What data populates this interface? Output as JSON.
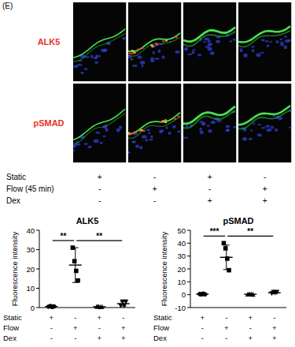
{
  "panel_label": "(E)",
  "images": {
    "rows": [
      "ALK5",
      "pSMAD"
    ],
    "row_color": "#e8332a",
    "conditions": [
      {
        "label": "Static",
        "values": [
          "+",
          "-",
          "+",
          "-"
        ]
      },
      {
        "label": "Flow (45 min)",
        "values": [
          "-",
          "+",
          "-",
          "+"
        ]
      },
      {
        "label": "Dex",
        "values": [
          "-",
          "-",
          "+",
          "+"
        ]
      }
    ]
  },
  "chart_data": [
    {
      "type": "dot",
      "title": "ALK5",
      "y_label": "Fluorescence intensity",
      "categories": [
        null,
        null,
        null,
        null
      ],
      "values": [
        0.55,
        22,
        0.45,
        2
      ],
      "errors": [
        0.2,
        9,
        0.15,
        1.2
      ],
      "points": [
        [
          0.5,
          0.8,
          0.3,
          0.6
        ],
        [
          31,
          24,
          19,
          14
        ],
        [
          0.5,
          0.6,
          0.3,
          0.4
        ],
        [
          1,
          3,
          1,
          3
        ]
      ],
      "color": "#000000",
      "ylim": [
        0,
        40
      ],
      "yticks": [
        0,
        10,
        20,
        30,
        40
      ],
      "annotations": [
        {
          "text": "**",
          "from": 0,
          "to": 1
        },
        {
          "text": "**",
          "from": 1,
          "to": 3
        }
      ],
      "conditions": [
        {
          "label": "Static",
          "values": [
            "+",
            "-",
            "+",
            "-"
          ]
        },
        {
          "label": "Flow",
          "values": [
            "-",
            "+",
            "-",
            "+"
          ]
        },
        {
          "label": "Dex",
          "values": [
            "-",
            "-",
            "+",
            "+"
          ]
        }
      ]
    },
    {
      "type": "dot",
      "title": "pSMAD",
      "y_label": "Fluorescence intensity",
      "categories": [
        null,
        null,
        null,
        null
      ],
      "values": [
        0.45,
        29,
        0.35,
        1.5
      ],
      "errors": [
        0.25,
        9.5,
        0.15,
        0.5
      ],
      "points": [
        [
          0.5,
          0.3,
          0.8,
          0.2
        ],
        [
          40,
          36,
          28,
          19
        ],
        [
          0.3,
          0.5,
          0.4,
          0.2
        ],
        [
          1,
          2,
          1.5,
          2
        ]
      ],
      "color": "#000000",
      "ylim": [
        -10,
        50
      ],
      "yticks": [
        -10,
        0,
        10,
        20,
        30,
        40,
        50
      ],
      "annotations": [
        {
          "text": "***",
          "from": 0,
          "to": 1
        },
        {
          "text": "**",
          "from": 1,
          "to": 3
        }
      ],
      "conditions": [
        {
          "label": "Static",
          "values": [
            "+",
            "-",
            "+",
            "-"
          ]
        },
        {
          "label": "Flow",
          "values": [
            "-",
            "+",
            "-",
            "+"
          ]
        },
        {
          "label": "Dex",
          "values": [
            "-",
            "-",
            "+",
            "+"
          ]
        }
      ]
    }
  ]
}
